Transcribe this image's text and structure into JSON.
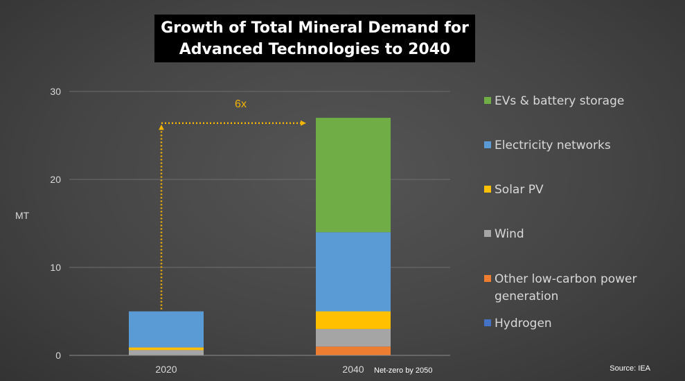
{
  "chart_data": {
    "type": "bar",
    "stacked": true,
    "title_lines": [
      "Growth of Total Mineral Demand for",
      "Advanced Technologies to 2040"
    ],
    "ylabel": "MT",
    "xlabel": "",
    "ylim": [
      0,
      30
    ],
    "yticks": [
      0,
      10,
      20,
      30
    ],
    "grid": true,
    "legend_position": "right",
    "categories": [
      "2020",
      "2040"
    ],
    "category_notes": [
      "",
      "Net-zero by 2050"
    ],
    "series": [
      {
        "name": "Hydrogen",
        "color": "#4472c4",
        "values": [
          0,
          0
        ]
      },
      {
        "name": "Other low-carbon power generation",
        "color": "#ed7d31",
        "values": [
          0,
          1
        ]
      },
      {
        "name": "Wind",
        "color": "#a5a5a5",
        "values": [
          0.6,
          2
        ]
      },
      {
        "name": "Solar PV",
        "color": "#ffc000",
        "values": [
          0.3,
          2
        ]
      },
      {
        "name": "Electricity networks",
        "color": "#5b9bd5",
        "values": [
          4.1,
          9
        ]
      },
      {
        "name": "EVs & battery storage",
        "color": "#70ad47",
        "values": [
          0,
          13
        ]
      }
    ],
    "legend_order": [
      "EVs & battery storage",
      "Electricity networks",
      "Solar PV",
      "Wind",
      "Other low-carbon power generation",
      "Hydrogen"
    ],
    "legend_display": [
      [
        "EVs & battery storage"
      ],
      [
        "Electricity networks"
      ],
      [
        "Solar PV"
      ],
      [
        "Wind"
      ],
      [
        "Other low-carbon power",
        "generation"
      ],
      [
        "Hydrogen"
      ]
    ],
    "annotation": {
      "text": "6x",
      "color": "#f5b400"
    },
    "source": "Source: IEA"
  }
}
